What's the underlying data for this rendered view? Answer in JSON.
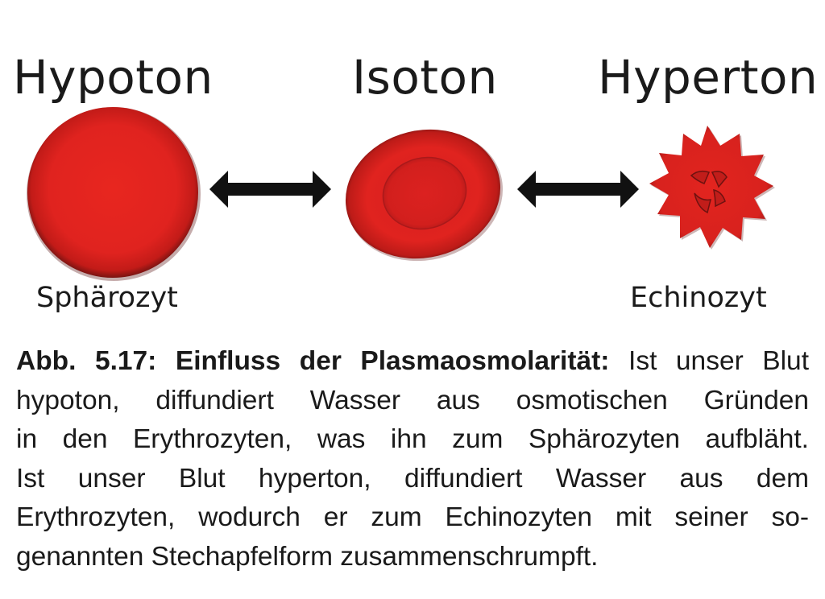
{
  "headings": {
    "hypotonic": "Hypoton",
    "isotonic": "Isoton",
    "hypertonic": "Hyperton"
  },
  "cell_labels": {
    "spherocyte": "Sphärozyt",
    "echinocyte": "Echinozyt"
  },
  "caption": {
    "lead": "Abb. 5.17: Einfluss der Plasmaosmolarität:",
    "line1_rest": " Ist unser Blut",
    "line2": "hypoton, diffundiert Wasser aus osmotischen Gründen",
    "line3": "in den Erythrozyten, was ihn zum Sphärozyten aufbläht.",
    "line4": "Ist unser Blut hyperton, diffundiert Wasser aus dem",
    "line5": "Erythrozyten, wodurch er zum Echinozyten mit seiner so-",
    "line6": "genannten Stechapfelform zusammenschrumpft."
  },
  "colors": {
    "cell_red": "#e0231f",
    "cell_dark": "#7a1412",
    "arrow": "#111111",
    "text": "#1a1a1a"
  }
}
